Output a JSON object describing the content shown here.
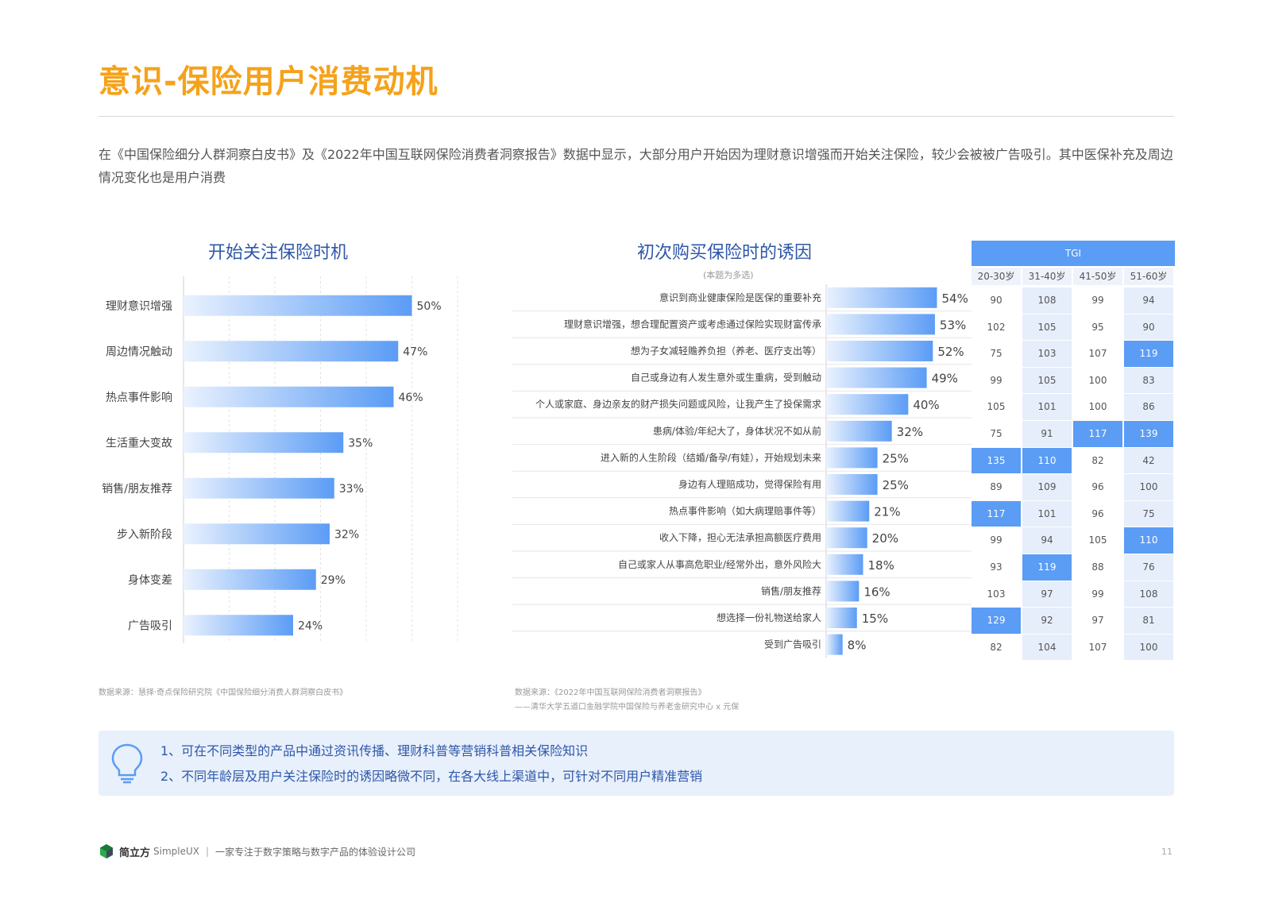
{
  "page": {
    "title": "意识-保险用户消费动机",
    "intro": "在《中国保险细分人群洞察白皮书》及《2022年中国互联网保险消费者洞察报告》数据中显示，大部分用户开始因为理财意识增强而开始关注保险，较少会被被广告吸引。其中医保补充及周边情况变化也是用户消费",
    "page_number": "11"
  },
  "chart_data": [
    {
      "type": "bar",
      "orientation": "horizontal",
      "title": "开始关注保险时机",
      "categories": [
        "理财意识增强",
        "周边情况触动",
        "热点事件影响",
        "生活重大变故",
        "销售/朋友推荐",
        "步入新阶段",
        "身体变差",
        "广告吸引"
      ],
      "values": [
        50,
        47,
        46,
        35,
        33,
        32,
        29,
        24
      ],
      "value_labels": [
        "50%",
        "47%",
        "46%",
        "35%",
        "33%",
        "32%",
        "29%",
        "24%"
      ],
      "xlim": [
        0,
        60
      ],
      "grid": true,
      "colors": {
        "start": "#eaf2fe",
        "end": "#5b9cf5"
      }
    },
    {
      "type": "bar",
      "orientation": "horizontal",
      "title": "初次购买保险时的诱因",
      "subtitle": "(本题为多选)",
      "categories": [
        "意识到商业健康保险是医保的重要补充",
        "理财意识增强，想合理配置资产或考虑通过保险实现财富传承",
        "想为子女减轻赡养负担（养老、医疗支出等）",
        "自己或身边有人发生意外或生重病，受到触动",
        "个人或家庭、身边亲友的财产损失问题或风险，让我产生了投保需求",
        "患病/体验/年纪大了，身体状况不如从前",
        "进入新的人生阶段（结婚/备孕/有娃），开始规划未来",
        "身边有人理赔成功，觉得保险有用",
        "热点事件影响（如大病理赔事件等）",
        "收入下降，担心无法承担高额医疗费用",
        "自己或家人从事高危职业/经常外出，意外风险大",
        "销售/朋友推荐",
        "想选择一份礼物送给家人",
        "受到广告吸引"
      ],
      "values": [
        54,
        53,
        52,
        49,
        40,
        32,
        25,
        25,
        21,
        20,
        18,
        16,
        15,
        8
      ],
      "value_labels": [
        "54%",
        "53%",
        "52%",
        "49%",
        "40%",
        "32%",
        "25%",
        "25%",
        "21%",
        "20%",
        "18%",
        "16%",
        "15%",
        "8%"
      ],
      "xlim": [
        0,
        60
      ]
    },
    {
      "type": "table",
      "title": "TGI",
      "columns": [
        "20-30岁",
        "31-40岁",
        "41-50岁",
        "51-60岁"
      ],
      "rows": [
        [
          90,
          108,
          99,
          94
        ],
        [
          102,
          105,
          95,
          90
        ],
        [
          75,
          103,
          107,
          119
        ],
        [
          99,
          105,
          100,
          83
        ],
        [
          105,
          101,
          100,
          86
        ],
        [
          75,
          91,
          117,
          139
        ],
        [
          135,
          110,
          82,
          42
        ],
        [
          89,
          109,
          96,
          100
        ],
        [
          117,
          101,
          96,
          75
        ],
        [
          99,
          94,
          105,
          110
        ],
        [
          93,
          119,
          88,
          76
        ],
        [
          103,
          97,
          99,
          108
        ],
        [
          129,
          92,
          97,
          81
        ],
        [
          82,
          104,
          107,
          100
        ]
      ]
    }
  ],
  "sources": {
    "left": "数据来源：慧择·奇点保险研究院《中国保险细分消费人群洞察白皮书》",
    "right_1": "数据来源：《2022年中国互联网保险消费者洞察报告》",
    "right_2": "——清华大学五道口金融学院中国保险与养老金研究中心 x 元保"
  },
  "tips": {
    "line1": "1、可在不同类型的产品中通过资讯传播、理财科普等营销科普相关保险知识",
    "line2": "2、不同年龄层及用户关注保险时的诱因略微不同，在各大线上渠道中，可针对不同用户精准营销",
    "icon": "lightbulb-icon"
  },
  "footer": {
    "brand": "简立方",
    "brand_en": "SimpleUX",
    "separator": "|",
    "tagline": "一家专注于数字策略与数字产品的体验设计公司",
    "logo_icon": "cube-logo-icon"
  }
}
